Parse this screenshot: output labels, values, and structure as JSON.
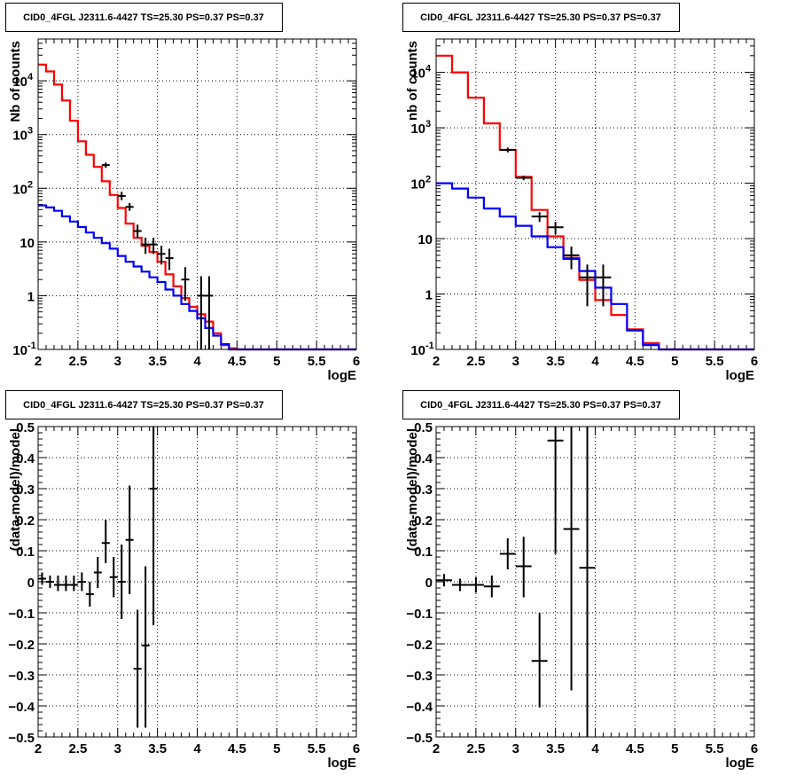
{
  "chart_data": [
    {
      "id": "counts-left",
      "type": "line",
      "title": "CID0_4FGL J2311.6-4427 TS=25.30 PS=0.37 PS=0.37",
      "xlabel": "logE",
      "ylabel": "Nb of counts",
      "xlim": [
        2,
        6
      ],
      "ylim": [
        0.1,
        60000
      ],
      "yscale": "log",
      "grid": true,
      "x_ticks": [
        "2",
        "2.5",
        "3",
        "3.5",
        "4",
        "4.5",
        "5",
        "5.5",
        "6"
      ],
      "y_ticks": [
        {
          "v": 0.1,
          "label": "10",
          "exp": "-1"
        },
        {
          "v": 1,
          "label": "1",
          "exp": ""
        },
        {
          "v": 10,
          "label": "10",
          "exp": ""
        },
        {
          "v": 100,
          "label": "10",
          "exp": "2"
        },
        {
          "v": 1000,
          "label": "10",
          "exp": "3"
        },
        {
          "v": 10000,
          "label": "10",
          "exp": "4"
        }
      ],
      "series": [
        {
          "color": "#ff0000",
          "style": "step",
          "bin_width": 0.1,
          "bins_start": [
            2.0,
            2.1,
            2.2,
            2.3,
            2.4,
            2.5,
            2.6,
            2.7,
            2.8,
            2.9,
            3.0,
            3.1,
            3.2,
            3.3,
            3.4,
            3.5,
            3.6,
            3.7,
            3.8,
            3.9,
            4.0,
            4.1,
            4.2,
            4.3,
            4.4,
            4.5,
            4.6,
            4.7,
            4.8,
            4.9,
            5.0,
            5.1,
            5.2,
            5.3,
            5.4,
            5.5,
            5.6,
            5.7,
            5.8,
            5.9
          ],
          "values": [
            20000,
            15000,
            8500,
            4300,
            1800,
            750,
            420,
            250,
            135,
            75,
            43,
            22,
            12,
            8.5,
            6.5,
            4.3,
            2.5,
            1.5,
            0.9,
            0.62,
            0.45,
            0.33,
            0.2,
            0.12,
            0.105,
            0.1,
            0.1,
            0.1,
            0.1,
            0.1,
            0.1,
            0.1,
            0.1,
            0.1,
            0.1,
            0.1,
            0.1,
            0.1,
            0.1,
            0.1
          ]
        },
        {
          "color": "#0000ff",
          "style": "step",
          "bin_width": 0.1,
          "bins_start": [
            2.0,
            2.1,
            2.2,
            2.3,
            2.4,
            2.5,
            2.6,
            2.7,
            2.8,
            2.9,
            3.0,
            3.1,
            3.2,
            3.3,
            3.4,
            3.5,
            3.6,
            3.7,
            3.8,
            3.9,
            4.0,
            4.1,
            4.2,
            4.3,
            4.4,
            4.5,
            4.6,
            4.7,
            4.8,
            4.9,
            5.0,
            5.1,
            5.2,
            5.3,
            5.4,
            5.5,
            5.6,
            5.7,
            5.8,
            5.9
          ],
          "values": [
            48,
            44,
            38,
            30,
            24,
            19,
            15,
            12,
            9.5,
            7.5,
            5.5,
            4.3,
            3.5,
            2.8,
            2.2,
            1.8,
            1.3,
            1.0,
            0.7,
            0.52,
            0.38,
            0.25,
            0.18,
            0.125,
            0.1,
            0.1,
            0.1,
            0.1,
            0.1,
            0.1,
            0.1,
            0.1,
            0.1,
            0.1,
            0.1,
            0.1,
            0.1,
            0.1,
            0.1,
            0.1
          ]
        }
      ],
      "points": [
        {
          "x": 2.85,
          "y": 270,
          "xerr": 0.05,
          "ylo": 240,
          "yhi": 300
        },
        {
          "x": 3.05,
          "y": 72,
          "xerr": 0.05,
          "ylo": 60,
          "yhi": 86
        },
        {
          "x": 3.15,
          "y": 45,
          "xerr": 0.05,
          "ylo": 38,
          "yhi": 53
        },
        {
          "x": 3.25,
          "y": 16,
          "xerr": 0.05,
          "ylo": 12,
          "yhi": 21
        },
        {
          "x": 3.35,
          "y": 9,
          "xerr": 0.05,
          "ylo": 6,
          "yhi": 12
        },
        {
          "x": 3.45,
          "y": 9,
          "xerr": 0.05,
          "ylo": 6,
          "yhi": 12
        },
        {
          "x": 3.55,
          "y": 6,
          "xerr": 0.05,
          "ylo": 3.8,
          "yhi": 8.5
        },
        {
          "x": 3.65,
          "y": 5,
          "xerr": 0.05,
          "ylo": 3,
          "yhi": 7.5
        },
        {
          "x": 3.85,
          "y": 2,
          "xerr": 0.05,
          "ylo": 0.8,
          "yhi": 3.4
        },
        {
          "x": 4.05,
          "y": 1,
          "xerr": 0.05,
          "ylo": 0.1,
          "yhi": 2.3
        },
        {
          "x": 4.15,
          "y": 1,
          "xerr": 0.05,
          "ylo": 0.1,
          "yhi": 2.3
        }
      ]
    },
    {
      "id": "counts-right",
      "type": "line",
      "title": "CID0_4FGL J2311.6-4427 TS=25.30 PS=0.37 PS=0.37",
      "xlabel": "logE",
      "ylabel": "nb of counts",
      "xlim": [
        2,
        6
      ],
      "ylim": [
        0.1,
        40000
      ],
      "yscale": "log",
      "grid": true,
      "x_ticks": [
        "2",
        "2.5",
        "3",
        "3.5",
        "4",
        "4.5",
        "5",
        "5.5",
        "6"
      ],
      "y_ticks": [
        {
          "v": 0.1,
          "label": "10",
          "exp": "-1"
        },
        {
          "v": 1,
          "label": "1",
          "exp": ""
        },
        {
          "v": 10,
          "label": "10",
          "exp": ""
        },
        {
          "v": 100,
          "label": "10",
          "exp": "2"
        },
        {
          "v": 1000,
          "label": "10",
          "exp": "3"
        },
        {
          "v": 10000,
          "label": "10",
          "exp": "4"
        }
      ],
      "series": [
        {
          "color": "#ff0000",
          "style": "step",
          "bin_width": 0.2,
          "bins_start": [
            2.0,
            2.2,
            2.4,
            2.6,
            2.8,
            3.0,
            3.2,
            3.4,
            3.6,
            3.8,
            4.0,
            4.2,
            4.4,
            4.6,
            4.8,
            5.0,
            5.2,
            5.4,
            5.6,
            5.8
          ],
          "values": [
            20000,
            10000,
            3500,
            1200,
            400,
            130,
            33,
            11,
            4.5,
            1.8,
            0.78,
            0.42,
            0.23,
            0.13,
            0.1,
            0.1,
            0.1,
            0.1,
            0.1,
            0.1
          ]
        },
        {
          "color": "#0000ff",
          "style": "step",
          "bin_width": 0.2,
          "bins_start": [
            2.0,
            2.2,
            2.4,
            2.6,
            2.8,
            3.0,
            3.2,
            3.4,
            3.6,
            3.8,
            4.0,
            4.2,
            4.4,
            4.6,
            4.8,
            5.0,
            5.2,
            5.4,
            5.6,
            5.8
          ],
          "values": [
            100,
            80,
            55,
            35,
            25,
            17,
            11,
            7,
            4.3,
            2.6,
            1.3,
            0.66,
            0.22,
            0.12,
            0.1,
            0.1,
            0.1,
            0.1,
            0.1,
            0.1
          ]
        }
      ],
      "points": [
        {
          "x": 2.9,
          "y": 400,
          "xerr": 0.1,
          "ylo": 360,
          "yhi": 440
        },
        {
          "x": 3.1,
          "y": 125,
          "xerr": 0.1,
          "ylo": 113,
          "yhi": 137
        },
        {
          "x": 3.3,
          "y": 25,
          "xerr": 0.1,
          "ylo": 20,
          "yhi": 30
        },
        {
          "x": 3.5,
          "y": 16,
          "xerr": 0.1,
          "ylo": 12,
          "yhi": 20
        },
        {
          "x": 3.7,
          "y": 5,
          "xerr": 0.1,
          "ylo": 2.8,
          "yhi": 7.2
        },
        {
          "x": 3.9,
          "y": 2,
          "xerr": 0.1,
          "ylo": 0.6,
          "yhi": 3.4
        },
        {
          "x": 4.1,
          "y": 2,
          "xerr": 0.1,
          "ylo": 0.6,
          "yhi": 3.4
        }
      ]
    },
    {
      "id": "residuals-left",
      "type": "scatter",
      "title": "CID0_4FGL J2311.6-4427 TS=25.30 PS=0.37 PS=0.37",
      "xlabel": "logE",
      "ylabel": "(data-model)/model",
      "xlim": [
        2,
        6
      ],
      "ylim": [
        -0.5,
        0.5
      ],
      "yscale": "linear",
      "grid": true,
      "x_ticks": [
        "2",
        "2.5",
        "3",
        "3.5",
        "4",
        "4.5",
        "5",
        "5.5",
        "6"
      ],
      "y_ticks": [
        {
          "v": -0.5,
          "label": "−0.5"
        },
        {
          "v": -0.4,
          "label": "−0.4"
        },
        {
          "v": -0.3,
          "label": "−0.3"
        },
        {
          "v": -0.2,
          "label": "−0.2"
        },
        {
          "v": -0.1,
          "label": "−0.1"
        },
        {
          "v": 0,
          "label": "0"
        },
        {
          "v": 0.1,
          "label": "0.1"
        },
        {
          "v": 0.2,
          "label": "0.2"
        },
        {
          "v": 0.3,
          "label": "0.3"
        },
        {
          "v": 0.4,
          "label": "0.4"
        },
        {
          "v": 0.5,
          "label": "0.5"
        }
      ],
      "series": [],
      "points": [
        {
          "x": 2.05,
          "y": 0.01,
          "xerr": 0.05,
          "ylo": -0.01,
          "yhi": 0.03
        },
        {
          "x": 2.15,
          "y": 0.0,
          "xerr": 0.05,
          "ylo": -0.02,
          "yhi": 0.02
        },
        {
          "x": 2.25,
          "y": -0.01,
          "xerr": 0.05,
          "ylo": -0.03,
          "yhi": 0.02
        },
        {
          "x": 2.35,
          "y": -0.01,
          "xerr": 0.05,
          "ylo": -0.03,
          "yhi": 0.02
        },
        {
          "x": 2.45,
          "y": -0.01,
          "xerr": 0.05,
          "ylo": -0.03,
          "yhi": 0.02
        },
        {
          "x": 2.55,
          "y": 0.0,
          "xerr": 0.05,
          "ylo": -0.03,
          "yhi": 0.03
        },
        {
          "x": 2.65,
          "y": -0.04,
          "xerr": 0.05,
          "ylo": -0.08,
          "yhi": 0.0
        },
        {
          "x": 2.75,
          "y": 0.03,
          "xerr": 0.05,
          "ylo": -0.02,
          "yhi": 0.08
        },
        {
          "x": 2.85,
          "y": 0.125,
          "xerr": 0.05,
          "ylo": 0.06,
          "yhi": 0.2
        },
        {
          "x": 2.95,
          "y": 0.015,
          "xerr": 0.05,
          "ylo": -0.05,
          "yhi": 0.08
        },
        {
          "x": 3.05,
          "y": 0.0,
          "xerr": 0.05,
          "ylo": -0.12,
          "yhi": 0.12
        },
        {
          "x": 3.15,
          "y": 0.135,
          "xerr": 0.05,
          "ylo": -0.04,
          "yhi": 0.31
        },
        {
          "x": 3.25,
          "y": -0.28,
          "xerr": 0.05,
          "ylo": -0.47,
          "yhi": -0.09
        },
        {
          "x": 3.35,
          "y": -0.205,
          "xerr": 0.05,
          "ylo": -0.47,
          "yhi": 0.05
        },
        {
          "x": 3.45,
          "y": 0.3,
          "xerr": 0.05,
          "ylo": -0.14,
          "yhi": 0.5
        }
      ]
    },
    {
      "id": "residuals-right",
      "type": "scatter",
      "title": "CID0_4FGL J2311.6-4427 TS=25.30 PS=0.37 PS=0.37",
      "xlabel": "logE",
      "ylabel": "(data-model)/model",
      "xlim": [
        2,
        6
      ],
      "ylim": [
        -0.5,
        0.5
      ],
      "yscale": "linear",
      "grid": true,
      "x_ticks": [
        "2",
        "2.5",
        "3",
        "3.5",
        "4",
        "4.5",
        "5",
        "5.5",
        "6"
      ],
      "y_ticks": [
        {
          "v": -0.5,
          "label": "−0.5"
        },
        {
          "v": -0.4,
          "label": "−0.4"
        },
        {
          "v": -0.3,
          "label": "−0.3"
        },
        {
          "v": -0.2,
          "label": "−0.2"
        },
        {
          "v": -0.1,
          "label": "−0.1"
        },
        {
          "v": 0,
          "label": "0"
        },
        {
          "v": 0.1,
          "label": "0.1"
        },
        {
          "v": 0.2,
          "label": "0.2"
        },
        {
          "v": 0.3,
          "label": "0.3"
        },
        {
          "v": 0.4,
          "label": "0.4"
        },
        {
          "v": 0.5,
          "label": "0.5"
        }
      ],
      "series": [],
      "points": [
        {
          "x": 2.1,
          "y": 0.005,
          "xerr": 0.1,
          "ylo": -0.015,
          "yhi": 0.025
        },
        {
          "x": 2.3,
          "y": -0.01,
          "xerr": 0.1,
          "ylo": -0.03,
          "yhi": 0.01
        },
        {
          "x": 2.5,
          "y": -0.01,
          "xerr": 0.1,
          "ylo": -0.035,
          "yhi": 0.015
        },
        {
          "x": 2.7,
          "y": -0.015,
          "xerr": 0.1,
          "ylo": -0.05,
          "yhi": 0.02
        },
        {
          "x": 2.9,
          "y": 0.09,
          "xerr": 0.1,
          "ylo": 0.04,
          "yhi": 0.14
        },
        {
          "x": 3.1,
          "y": 0.05,
          "xerr": 0.1,
          "ylo": -0.05,
          "yhi": 0.145
        },
        {
          "x": 3.3,
          "y": -0.255,
          "xerr": 0.1,
          "ylo": -0.405,
          "yhi": -0.1
        },
        {
          "x": 3.5,
          "y": 0.455,
          "xerr": 0.1,
          "ylo": 0.09,
          "yhi": 0.5
        },
        {
          "x": 3.7,
          "y": 0.17,
          "xerr": 0.1,
          "ylo": -0.35,
          "yhi": 0.5
        },
        {
          "x": 3.9,
          "y": 0.045,
          "xerr": 0.1,
          "ylo": -0.5,
          "yhi": 0.5
        }
      ]
    }
  ]
}
